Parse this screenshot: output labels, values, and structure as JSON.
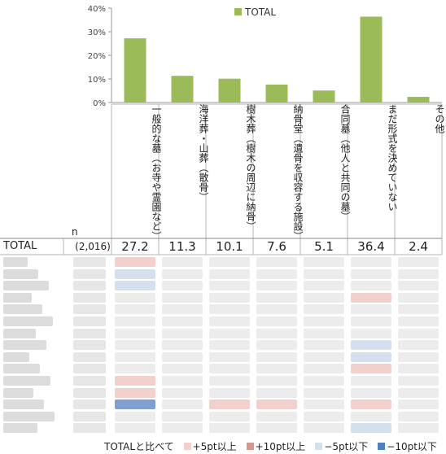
{
  "chart_data": {
    "type": "bar",
    "legend": {
      "label": "TOTAL",
      "position": "top"
    },
    "ylim": [
      0,
      40
    ],
    "y_ticks": [
      "0%",
      "10%",
      "20%",
      "30%",
      "40%"
    ],
    "categories": [
      "一般的な墓（お寺や霊園など）",
      "海洋葬・山葬（散骨）",
      "樹木葬（樹木の周辺に納骨）",
      "納骨堂（遺骨を収容する施設）",
      "合同墓（他人と共同の墓）",
      "まだ形式を決めていない",
      "その他"
    ],
    "series": [
      {
        "name": "TOTAL",
        "color": "#9bbb59",
        "values": [
          27.2,
          11.3,
          10.1,
          7.6,
          5.1,
          36.4,
          2.4
        ]
      }
    ]
  },
  "table": {
    "n_header": "n",
    "total_row": {
      "label": "TOTAL",
      "n": "(2,016)",
      "values": [
        "27.2",
        "11.3",
        "10.1",
        "7.6",
        "5.1",
        "36.4",
        "2.4"
      ]
    }
  },
  "footer_legend": {
    "intro": "TOTALと比べて",
    "items": [
      {
        "label": "+5pt以上",
        "color": "#f2d0cc"
      },
      {
        "label": "+10pt以上",
        "color": "#d9968f"
      },
      {
        "label": "−5pt以下",
        "color": "#d4e0ee"
      },
      {
        "label": "−10pt以下",
        "color": "#4f81bd"
      }
    ]
  }
}
